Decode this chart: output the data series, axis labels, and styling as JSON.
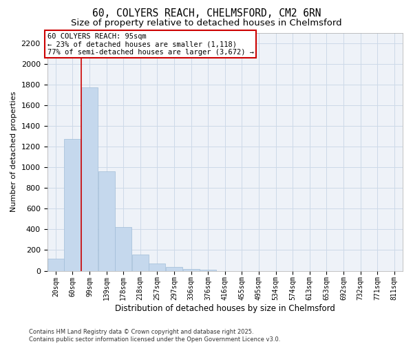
{
  "title1": "60, COLYERS REACH, CHELMSFORD, CM2 6RN",
  "title2": "Size of property relative to detached houses in Chelmsford",
  "xlabel": "Distribution of detached houses by size in Chelmsford",
  "ylabel": "Number of detached properties",
  "categories": [
    "20sqm",
    "60sqm",
    "99sqm",
    "139sqm",
    "178sqm",
    "218sqm",
    "257sqm",
    "297sqm",
    "336sqm",
    "376sqm",
    "416sqm",
    "455sqm",
    "495sqm",
    "534sqm",
    "574sqm",
    "613sqm",
    "653sqm",
    "692sqm",
    "732sqm",
    "771sqm",
    "811sqm"
  ],
  "values": [
    120,
    1270,
    1770,
    960,
    420,
    155,
    70,
    35,
    20,
    10,
    0,
    0,
    0,
    0,
    0,
    0,
    0,
    0,
    0,
    0,
    0
  ],
  "bar_color": "#c5d8ed",
  "bar_edgecolor": "#a0bcd8",
  "vline_x_index": 2,
  "vline_color": "#cc0000",
  "annotation_text": "60 COLYERS REACH: 95sqm\n← 23% of detached houses are smaller (1,118)\n77% of semi-detached houses are larger (3,672) →",
  "annotation_box_facecolor": "#ffffff",
  "annotation_box_edgecolor": "#cc0000",
  "ylim": [
    0,
    2300
  ],
  "yticks": [
    0,
    200,
    400,
    600,
    800,
    1000,
    1200,
    1400,
    1600,
    1800,
    2000,
    2200
  ],
  "grid_color": "#ccd9e8",
  "background_color": "#eef2f8",
  "footnote": "Contains HM Land Registry data © Crown copyright and database right 2025.\nContains public sector information licensed under the Open Government Licence v3.0.",
  "title1_fontsize": 10.5,
  "title2_fontsize": 9.5,
  "xlabel_fontsize": 8.5,
  "ylabel_fontsize": 8,
  "ytick_fontsize": 8,
  "xtick_fontsize": 7,
  "annot_fontsize": 7.5,
  "footnote_fontsize": 6
}
